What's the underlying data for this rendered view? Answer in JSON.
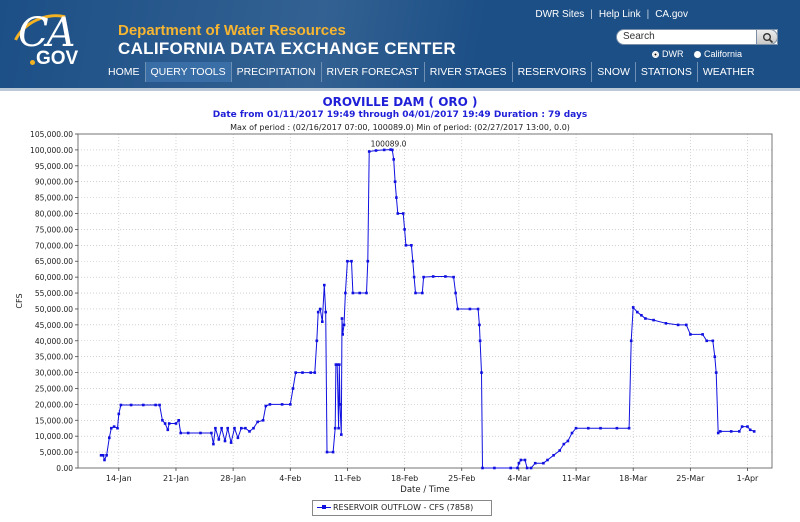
{
  "header": {
    "logo_ca": "CA",
    "logo_gov": "GOV",
    "org_name": "Department of Water Resources",
    "site_name": "CALIFORNIA DATA EXCHANGE CENTER",
    "top_links": [
      "DWR Sites",
      "Help Link",
      "CA.gov"
    ],
    "search": {
      "placeholder": "Search",
      "value": "Search"
    },
    "search_scope": [
      {
        "label": "DWR",
        "selected": true
      },
      {
        "label": "California",
        "selected": false
      }
    ]
  },
  "nav": {
    "items": [
      {
        "label": "HOME",
        "active": false
      },
      {
        "label": "QUERY TOOLS",
        "active": true
      },
      {
        "label": "PRECIPITATION",
        "active": false
      },
      {
        "label": "RIVER FORECAST",
        "active": false
      },
      {
        "label": "RIVER STAGES",
        "active": false
      },
      {
        "label": "RESERVOIRS",
        "active": false
      },
      {
        "label": "SNOW",
        "active": false
      },
      {
        "label": "STATIONS",
        "active": false
      },
      {
        "label": "WEATHER",
        "active": false
      }
    ]
  },
  "colors": {
    "header_bg": "#1c4f86",
    "org_name": "#f6b531",
    "series": "#1010e0",
    "title": "#1f1fd8"
  },
  "chart_data": {
    "type": "line",
    "title": "OROVILLE DAM ( ORO )",
    "subtitle": "Date from 01/11/2017 19:49 through 04/01/2017 19:49 Duration : 79 days",
    "period_text": "Max of period : (02/16/2017 07:00, 100089.0)  Min of period: (02/27/2017 13:00,  0.0)",
    "xlabel": "Date / Time",
    "ylabel": "CFS",
    "ylim": [
      0,
      105000
    ],
    "yticks": [
      0,
      5000,
      10000,
      15000,
      20000,
      25000,
      30000,
      35000,
      40000,
      45000,
      50000,
      55000,
      60000,
      65000,
      70000,
      75000,
      80000,
      85000,
      90000,
      95000,
      100000,
      105000
    ],
    "ytick_labels": [
      "0.00",
      "5,000.00",
      "10,000.00",
      "15,000.00",
      "20,000.00",
      "25,000.00",
      "30,000.00",
      "35,000.00",
      "40,000.00",
      "45,000.00",
      "50,000.00",
      "55,000.00",
      "60,000.00",
      "65,000.00",
      "70,000.00",
      "75,000.00",
      "80,000.00",
      "85,000.00",
      "90,000.00",
      "95,000.00",
      "100,000.00",
      "105,000.00"
    ],
    "xlim": [
      "2017-01-09",
      "2017-04-04"
    ],
    "xticks": [
      "2017-01-14",
      "2017-01-21",
      "2017-01-28",
      "2017-02-04",
      "2017-02-11",
      "2017-02-18",
      "2017-02-25",
      "2017-03-04",
      "2017-03-11",
      "2017-03-18",
      "2017-03-25",
      "2017-04-01"
    ],
    "xtick_labels": [
      "14-Jan",
      "21-Jan",
      "28-Jan",
      "4-Feb",
      "11-Feb",
      "18-Feb",
      "25-Feb",
      "4-Mar",
      "11-Mar",
      "18-Mar",
      "25-Mar",
      "1-Apr"
    ],
    "grid": true,
    "legend_position": "bottom-center",
    "annotation": {
      "text": "100089.0",
      "x": "2017-02-16 07:00",
      "y": 100089
    },
    "series": [
      {
        "name": "RESERVOIR OUTFLOW - CFS (7858)",
        "points": [
          [
            "2017-01-11 19:49",
            4000
          ],
          [
            "2017-01-12 02:00",
            4000
          ],
          [
            "2017-01-12 06:00",
            2500
          ],
          [
            "2017-01-12 12:00",
            4000
          ],
          [
            "2017-01-12 20:00",
            9500
          ],
          [
            "2017-01-13 02:00",
            12500
          ],
          [
            "2017-01-13 10:00",
            13000
          ],
          [
            "2017-01-13 20:00",
            12500
          ],
          [
            "2017-01-14 00:00",
            17000
          ],
          [
            "2017-01-14 06:00",
            19800
          ],
          [
            "2017-01-15 12:00",
            19800
          ],
          [
            "2017-01-17 00:00",
            19800
          ],
          [
            "2017-01-18 12:00",
            19800
          ],
          [
            "2017-01-19 00:00",
            19800
          ],
          [
            "2017-01-19 08:00",
            15000
          ],
          [
            "2017-01-19 16:00",
            14000
          ],
          [
            "2017-01-20 00:00",
            12000
          ],
          [
            "2017-01-20 04:00",
            14000
          ],
          [
            "2017-01-21 00:00",
            14000
          ],
          [
            "2017-01-21 08:00",
            15000
          ],
          [
            "2017-01-21 14:00",
            11000
          ],
          [
            "2017-01-22 12:00",
            11000
          ],
          [
            "2017-01-24 00:00",
            11000
          ],
          [
            "2017-01-25 08:00",
            11000
          ],
          [
            "2017-01-25 14:00",
            7500
          ],
          [
            "2017-01-25 20:00",
            12500
          ],
          [
            "2017-01-26 06:00",
            9000
          ],
          [
            "2017-01-26 14:00",
            12500
          ],
          [
            "2017-01-27 00:00",
            8500
          ],
          [
            "2017-01-27 08:00",
            12500
          ],
          [
            "2017-01-27 18:00",
            8000
          ],
          [
            "2017-01-28 04:00",
            12500
          ],
          [
            "2017-01-28 14:00",
            9500
          ],
          [
            "2017-01-29 00:00",
            12500
          ],
          [
            "2017-01-29 12:00",
            12500
          ],
          [
            "2017-01-30 00:00",
            11500
          ],
          [
            "2017-01-30 12:00",
            12500
          ],
          [
            "2017-01-31 00:00",
            14500
          ],
          [
            "2017-01-31 16:00",
            15000
          ],
          [
            "2017-02-01 00:00",
            19500
          ],
          [
            "2017-02-01 12:00",
            20000
          ],
          [
            "2017-02-03 00:00",
            20000
          ],
          [
            "2017-02-04 00:00",
            20000
          ],
          [
            "2017-02-04 08:00",
            25000
          ],
          [
            "2017-02-04 16:00",
            30000
          ],
          [
            "2017-02-05 12:00",
            30000
          ],
          [
            "2017-02-06 12:00",
            30000
          ],
          [
            "2017-02-07 00:00",
            30000
          ],
          [
            "2017-02-07 06:00",
            40000
          ],
          [
            "2017-02-07 10:00",
            49000
          ],
          [
            "2017-02-07 16:00",
            50000
          ],
          [
            "2017-02-07 22:00",
            46000
          ],
          [
            "2017-02-08 04:00",
            57500
          ],
          [
            "2017-02-08 08:00",
            49000
          ],
          [
            "2017-02-08 12:00",
            5000
          ],
          [
            "2017-02-09 06:00",
            5000
          ],
          [
            "2017-02-09 12:00",
            12500
          ],
          [
            "2017-02-09 14:00",
            32500
          ],
          [
            "2017-02-09 18:00",
            32500
          ],
          [
            "2017-02-09 22:00",
            12500
          ],
          [
            "2017-02-10 00:00",
            32500
          ],
          [
            "2017-02-10 02:00",
            20000
          ],
          [
            "2017-02-10 06:00",
            10500
          ],
          [
            "2017-02-10 08:00",
            47000
          ],
          [
            "2017-02-10 10:00",
            42000
          ],
          [
            "2017-02-10 14:00",
            45000
          ],
          [
            "2017-02-10 18:00",
            55000
          ],
          [
            "2017-02-11 00:00",
            65000
          ],
          [
            "2017-02-11 12:00",
            65000
          ],
          [
            "2017-02-11 16:00",
            55000
          ],
          [
            "2017-02-12 12:00",
            55000
          ],
          [
            "2017-02-13 08:00",
            55000
          ],
          [
            "2017-02-13 12:00",
            65000
          ],
          [
            "2017-02-13 16:00",
            99500
          ],
          [
            "2017-02-14 12:00",
            99800
          ],
          [
            "2017-02-15 12:00",
            100000
          ],
          [
            "2017-02-16 07:00",
            100089
          ],
          [
            "2017-02-16 12:00",
            100000
          ],
          [
            "2017-02-16 16:00",
            97000
          ],
          [
            "2017-02-16 20:00",
            90000
          ],
          [
            "2017-02-17 00:00",
            85000
          ],
          [
            "2017-02-17 04:00",
            80000
          ],
          [
            "2017-02-17 20:00",
            80000
          ],
          [
            "2017-02-18 00:00",
            75000
          ],
          [
            "2017-02-18 04:00",
            70000
          ],
          [
            "2017-02-18 20:00",
            70000
          ],
          [
            "2017-02-19 00:00",
            65000
          ],
          [
            "2017-02-19 04:00",
            60000
          ],
          [
            "2017-02-19 08:00",
            55000
          ],
          [
            "2017-02-20 04:00",
            55000
          ],
          [
            "2017-02-20 08:00",
            60000
          ],
          [
            "2017-02-21 12:00",
            60200
          ],
          [
            "2017-02-23 00:00",
            60200
          ],
          [
            "2017-02-24 00:00",
            60000
          ],
          [
            "2017-02-24 06:00",
            55000
          ],
          [
            "2017-02-24 12:00",
            50000
          ],
          [
            "2017-02-26 00:00",
            50000
          ],
          [
            "2017-02-27 00:00",
            50000
          ],
          [
            "2017-02-27 04:00",
            45000
          ],
          [
            "2017-02-27 06:00",
            40000
          ],
          [
            "2017-02-27 10:00",
            30000
          ],
          [
            "2017-02-27 13:00",
            0
          ],
          [
            "2017-03-01 00:00",
            0
          ],
          [
            "2017-03-03 00:00",
            0
          ],
          [
            "2017-03-03 20:00",
            0
          ],
          [
            "2017-03-04 00:00",
            1500
          ],
          [
            "2017-03-04 06:00",
            2500
          ],
          [
            "2017-03-04 18:00",
            2500
          ],
          [
            "2017-03-05 00:00",
            0
          ],
          [
            "2017-03-05 12:00",
            0
          ],
          [
            "2017-03-06 00:00",
            1500
          ],
          [
            "2017-03-07 00:00",
            1500
          ],
          [
            "2017-03-07 12:00",
            2500
          ],
          [
            "2017-03-08 06:00",
            4000
          ],
          [
            "2017-03-09 00:00",
            5500
          ],
          [
            "2017-03-09 12:00",
            7500
          ],
          [
            "2017-03-10 00:00",
            8500
          ],
          [
            "2017-03-10 12:00",
            11000
          ],
          [
            "2017-03-11 00:00",
            12500
          ],
          [
            "2017-03-12 12:00",
            12500
          ],
          [
            "2017-03-14 00:00",
            12500
          ],
          [
            "2017-03-16 00:00",
            12500
          ],
          [
            "2017-03-17 12:00",
            12500
          ],
          [
            "2017-03-17 18:00",
            40000
          ],
          [
            "2017-03-18 00:00",
            50500
          ],
          [
            "2017-03-18 12:00",
            49000
          ],
          [
            "2017-03-19 00:00",
            48000
          ],
          [
            "2017-03-19 12:00",
            47000
          ],
          [
            "2017-03-20 12:00",
            46500
          ],
          [
            "2017-03-22 00:00",
            45500
          ],
          [
            "2017-03-23 12:00",
            45000
          ],
          [
            "2017-03-24 12:00",
            45000
          ],
          [
            "2017-03-25 00:00",
            42000
          ],
          [
            "2017-03-26 12:00",
            42000
          ],
          [
            "2017-03-27 00:00",
            40000
          ],
          [
            "2017-03-27 18:00",
            40000
          ],
          [
            "2017-03-28 00:00",
            35000
          ],
          [
            "2017-03-28 04:00",
            30000
          ],
          [
            "2017-03-28 10:00",
            11000
          ],
          [
            "2017-03-28 16:00",
            11500
          ],
          [
            "2017-03-30 00:00",
            11500
          ],
          [
            "2017-03-31 00:00",
            11500
          ],
          [
            "2017-03-31 08:00",
            13000
          ],
          [
            "2017-04-01 00:00",
            13000
          ],
          [
            "2017-04-01 08:00",
            12000
          ],
          [
            "2017-04-01 19:49",
            11500
          ]
        ]
      }
    ]
  }
}
